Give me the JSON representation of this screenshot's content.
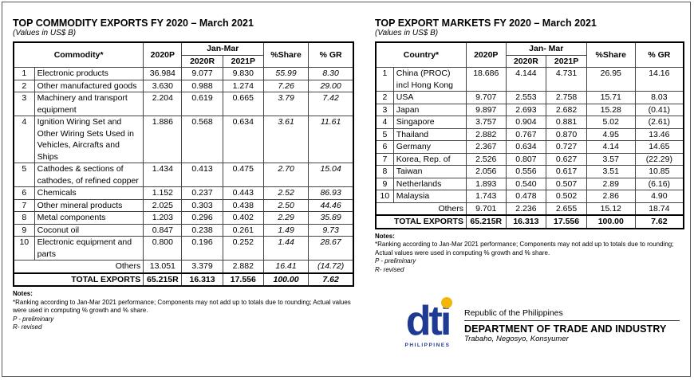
{
  "commodity": {
    "title": "TOP COMMODITY EXPORTS FY 2020 – March 2021",
    "subtitle": "(Values in US$ B)",
    "headers": {
      "commodity": "Commodity*",
      "y2020": "2020P",
      "janmar": "Jan-Mar",
      "h2020": "2020R",
      "h2021": "2021P",
      "share": "%Share",
      "gr": "% GR"
    },
    "rows": [
      {
        "rank": "1",
        "name": "Electronic products",
        "v2020": "36.984",
        "jm2020": "9.077",
        "jm2021": "9.830",
        "share": "55.99",
        "gr": "8.30"
      },
      {
        "rank": "2",
        "name": "Other manufactured goods",
        "v2020": "3.630",
        "jm2020": "0.988",
        "jm2021": "1.274",
        "share": "7.26",
        "gr": "29.00"
      },
      {
        "rank": "3",
        "name": "Machinery and transport equipment",
        "v2020": "2.204",
        "jm2020": "0.619",
        "jm2021": "0.665",
        "share": "3.79",
        "gr": "7.42"
      },
      {
        "rank": "4",
        "name": "Ignition Wiring Set and Other Wiring Sets Used in Vehicles, Aircrafts and Ships",
        "v2020": "1.886",
        "jm2020": "0.568",
        "jm2021": "0.634",
        "share": "3.61",
        "gr": "11.61"
      },
      {
        "rank": "5",
        "name": "Cathodes & sections of cathodes, of refined copper",
        "v2020": "1.434",
        "jm2020": "0.413",
        "jm2021": "0.475",
        "share": "2.70",
        "gr": "15.04"
      },
      {
        "rank": "6",
        "name": "Chemicals",
        "v2020": "1.152",
        "jm2020": "0.237",
        "jm2021": "0.443",
        "share": "2.52",
        "gr": "86.93"
      },
      {
        "rank": "7",
        "name": "Other mineral products",
        "v2020": "2.025",
        "jm2020": "0.303",
        "jm2021": "0.438",
        "share": "2.50",
        "gr": "44.46"
      },
      {
        "rank": "8",
        "name": "Metal components",
        "v2020": "1.203",
        "jm2020": "0.296",
        "jm2021": "0.402",
        "share": "2.29",
        "gr": "35.89"
      },
      {
        "rank": "9",
        "name": "Coconut oil",
        "v2020": "0.847",
        "jm2020": "0.238",
        "jm2021": "0.261",
        "share": "1.49",
        "gr": "9.73"
      },
      {
        "rank": "10",
        "name": "Electronic equipment and parts",
        "v2020": "0.800",
        "jm2020": "0.196",
        "jm2021": "0.252",
        "share": "1.44",
        "gr": "28.67"
      }
    ],
    "others": {
      "label": "Others",
      "v2020": "13.051",
      "jm2020": "3.379",
      "jm2021": "2.882",
      "share": "16.41",
      "gr": "(14.72)"
    },
    "total": {
      "label": "TOTAL EXPORTS",
      "v2020": "65.215R",
      "jm2020": "16.313",
      "jm2021": "17.556",
      "share": "100.00",
      "gr": "7.62"
    },
    "notes": {
      "heading": "Notes:",
      "line1": "*Ranking according to Jan-Mar 2021 performance; Components may not add up to totals due to rounding; Actual values were used in computing % growth and % share.",
      "line2": "P - preliminary",
      "line3": "R- revised"
    }
  },
  "markets": {
    "title": "TOP EXPORT MARKETS FY 2020 –  March 2021",
    "subtitle": "(Values in US$ B)",
    "headers": {
      "country": "Country*",
      "y2020": "2020P",
      "janmar": "Jan- Mar",
      "h2020": "2020R",
      "h2021": "2021P",
      "share": "%Share",
      "gr": "% GR"
    },
    "rows": [
      {
        "rank": "1",
        "name": "China (PROC) incl Hong Kong",
        "v2020": "18.686",
        "jm2020": "4.144",
        "jm2021": "4.731",
        "share": "26.95",
        "gr": "14.16"
      },
      {
        "rank": "2",
        "name": "USA",
        "v2020": "9.707",
        "jm2020": "2.553",
        "jm2021": "2.758",
        "share": "15.71",
        "gr": "8.03"
      },
      {
        "rank": "3",
        "name": "Japan",
        "v2020": "9.897",
        "jm2020": "2.693",
        "jm2021": "2.682",
        "share": "15.28",
        "gr": "(0.41)"
      },
      {
        "rank": "4",
        "name": "Singapore",
        "v2020": "3.757",
        "jm2020": "0.904",
        "jm2021": "0.881",
        "share": "5.02",
        "gr": "(2.61)"
      },
      {
        "rank": "5",
        "name": "Thailand",
        "v2020": "2.882",
        "jm2020": "0.767",
        "jm2021": "0.870",
        "share": "4.95",
        "gr": "13.46"
      },
      {
        "rank": "6",
        "name": "Germany",
        "v2020": "2.367",
        "jm2020": "0.634",
        "jm2021": "0.727",
        "share": "4.14",
        "gr": "14.65"
      },
      {
        "rank": "7",
        "name": "Korea, Rep. of",
        "v2020": "2.526",
        "jm2020": "0.807",
        "jm2021": "0.627",
        "share": "3.57",
        "gr": "(22.29)"
      },
      {
        "rank": "8",
        "name": "Taiwan",
        "v2020": "2.056",
        "jm2020": "0.556",
        "jm2021": "0.617",
        "share": "3.51",
        "gr": "10.85"
      },
      {
        "rank": "9",
        "name": "Netherlands",
        "v2020": "1.893",
        "jm2020": "0.540",
        "jm2021": "0.507",
        "share": "2.89",
        "gr": "(6.16)"
      },
      {
        "rank": "10",
        "name": "Malaysia",
        "v2020": "1.743",
        "jm2020": "0.478",
        "jm2021": "0.502",
        "share": "2.86",
        "gr": "4.90"
      }
    ],
    "others": {
      "label": "Others",
      "v2020": "9.701",
      "jm2020": "2.236",
      "jm2021": "2.655",
      "share": "15.12",
      "gr": "18.74"
    },
    "total": {
      "label": "TOTAL EXPORTS",
      "v2020": "65.215R",
      "jm2020": "16.313",
      "jm2021": "17.556",
      "share": "100.00",
      "gr": "7.62"
    },
    "notes": {
      "heading": "Notes:",
      "line1": "*Ranking according to Jan-Mar 2021 performance; Components may not add up to totals due to rounding; Actual values were used in computing % growth and % share.",
      "line2": "P - preliminary",
      "line3": "R- revised"
    }
  },
  "branding": {
    "logo_text": "dti",
    "logo_sub": "PHILIPPINES",
    "republic": "Republic of the Philippines",
    "department": "DEPARTMENT OF TRADE AND INDUSTRY",
    "tagline": "Trabaho, Negosyo, Konsyumer",
    "logo_color": "#1f3a93",
    "accent_color": "#f2b705"
  }
}
